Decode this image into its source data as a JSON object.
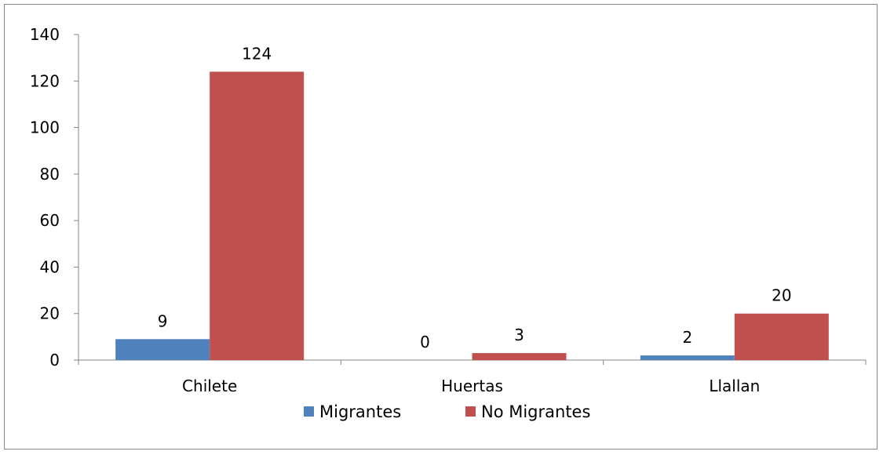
{
  "chart_data": {
    "type": "bar",
    "title": "",
    "xlabel": "",
    "ylabel": "",
    "categories": [
      "Chilete",
      "Huertas",
      "Llallan"
    ],
    "series": [
      {
        "name": "Migrantes",
        "values": [
          9,
          0,
          2
        ],
        "color": "#4F81BD"
      },
      {
        "name": "No Migrantes",
        "values": [
          124,
          3,
          20
        ],
        "color": "#C0504D"
      }
    ],
    "ylim": [
      0,
      140
    ],
    "yticks": [
      0,
      20,
      40,
      60,
      80,
      100,
      120,
      140
    ],
    "data_labels": true,
    "grid": false,
    "legend_position": "bottom"
  }
}
